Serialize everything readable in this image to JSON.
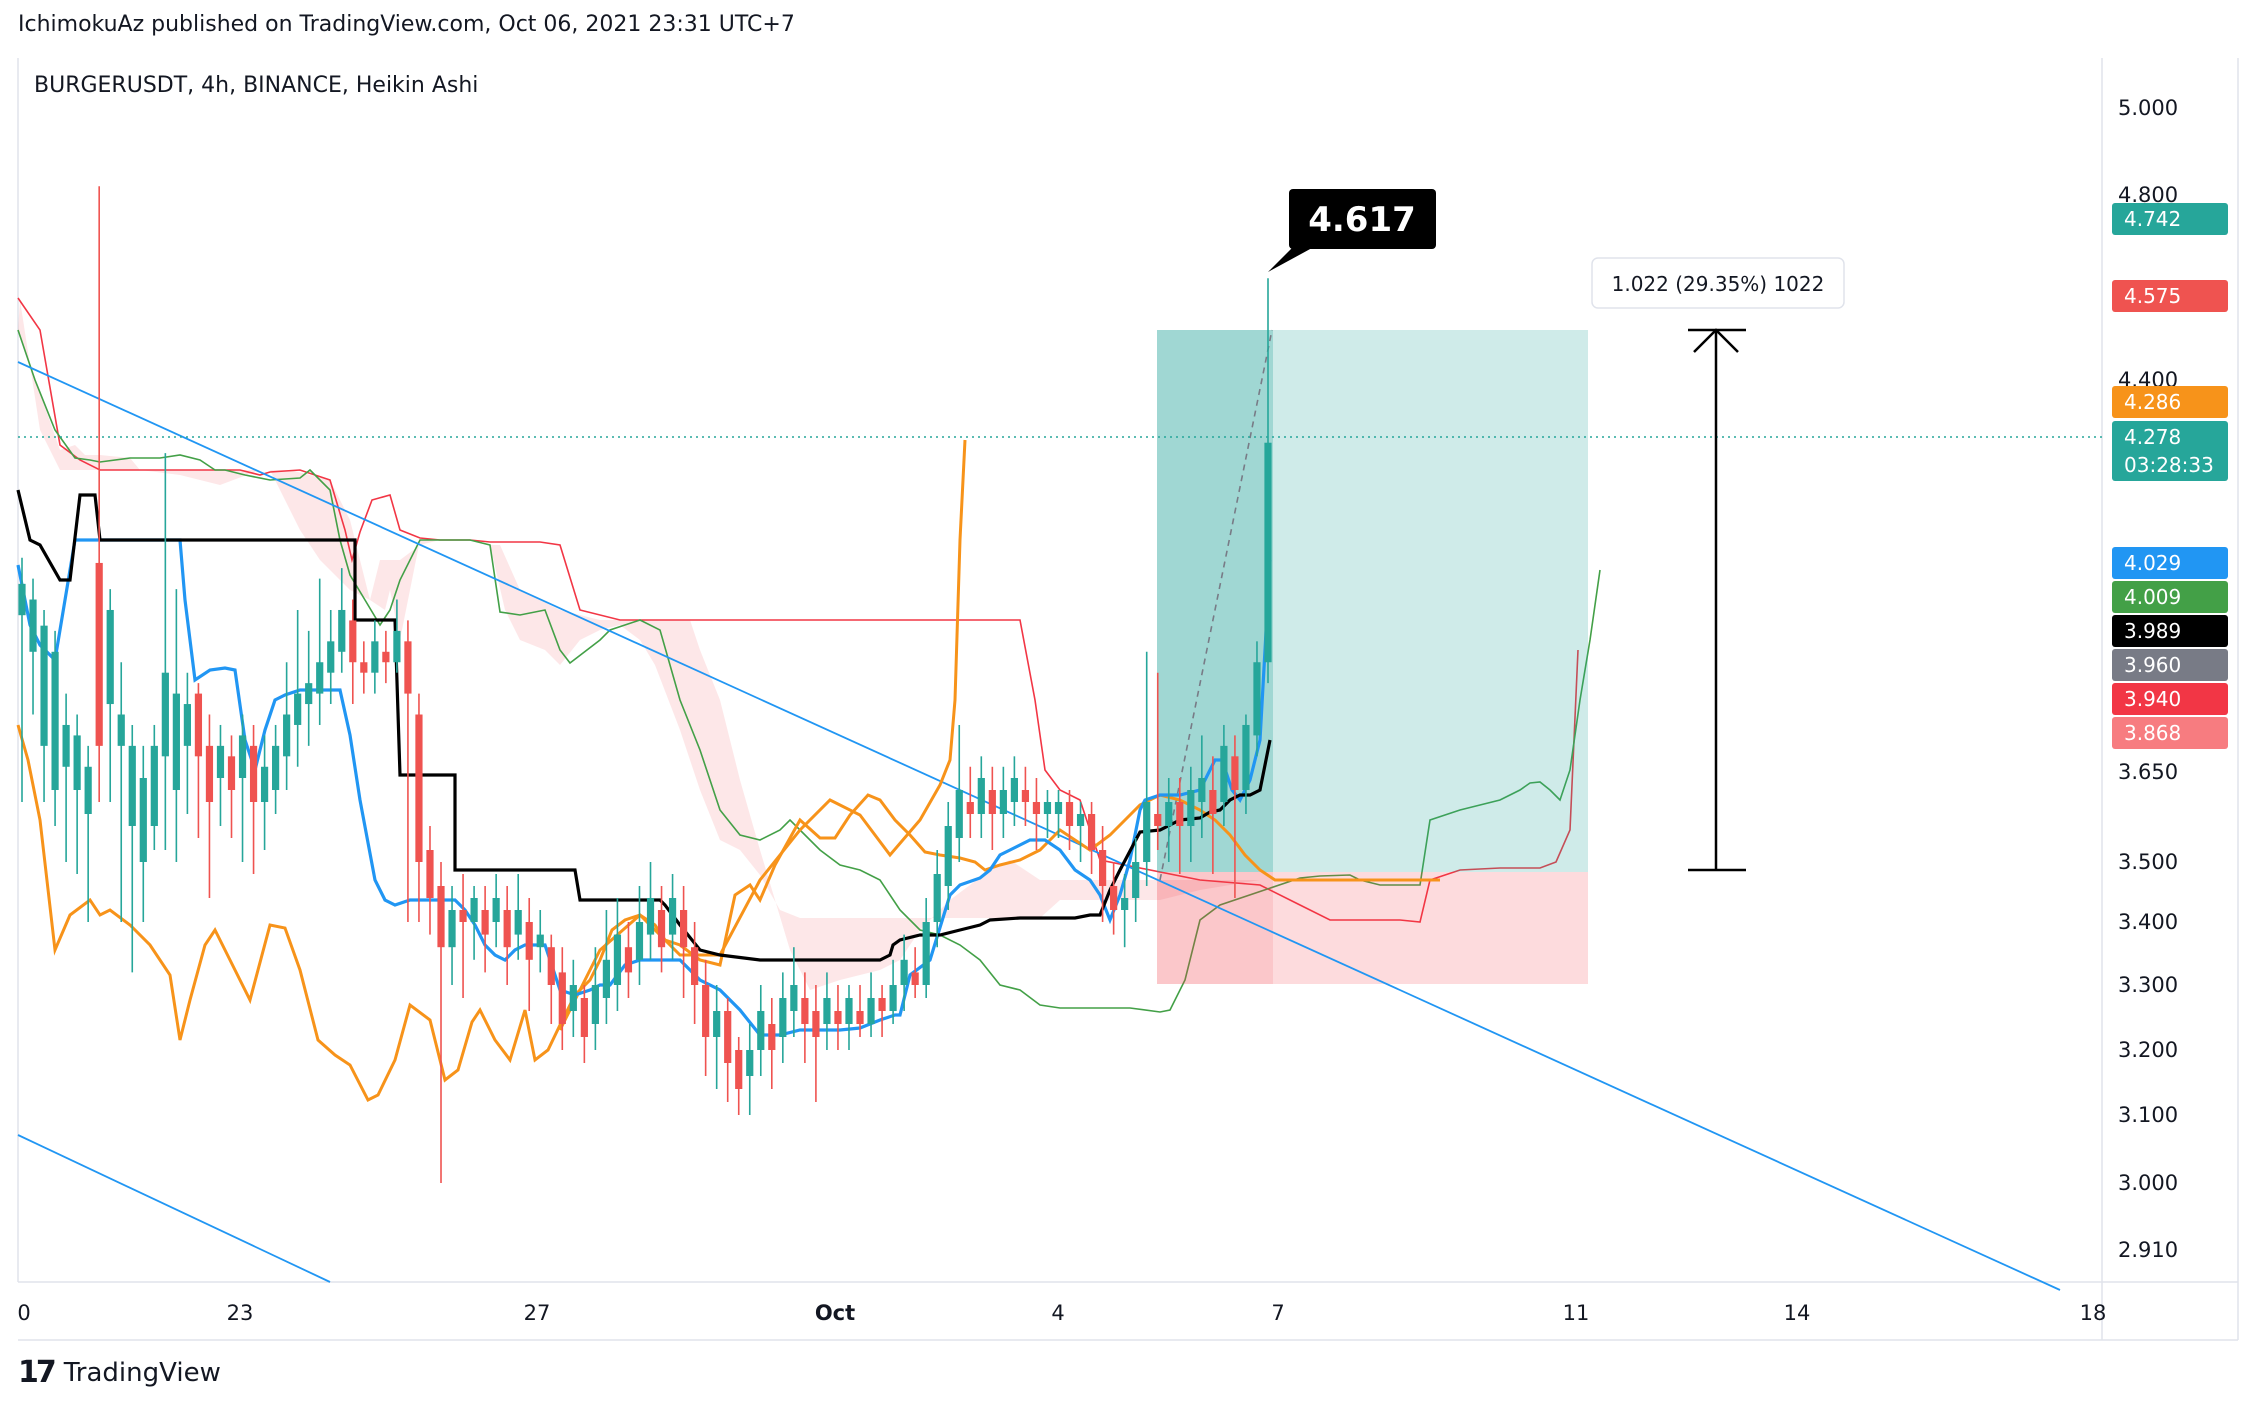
{
  "header": {
    "published": "IchimokuAz published on TradingView.com, Oct 06, 2021 23:31 UTC+7"
  },
  "footer": {
    "logo": "17",
    "brand": "TradingView"
  },
  "chart_data": {
    "type": "candlestick",
    "title": "BURGERUSDT, 4h, BINANCE, Heikin Ashi",
    "ylim": [
      2.87,
      5.09
    ],
    "y_ticks": [
      "5.000",
      "4.800",
      "4.400",
      "3.650",
      "3.500",
      "3.400",
      "3.300",
      "3.200",
      "3.100",
      "3.000",
      "2.910"
    ],
    "x_ticks": [
      "0",
      "23",
      "27",
      "Oct",
      "4",
      "7",
      "11",
      "14",
      "18"
    ],
    "grid": false,
    "price_tags": [
      {
        "text": "4.742",
        "color": "#26a69a"
      },
      {
        "text": "4.575",
        "color": "#ef5350"
      },
      {
        "text": "4.286",
        "color": "#f7931a"
      },
      {
        "text": "4.278",
        "sub": "03:28:33",
        "color": "#26a69a"
      },
      {
        "text": "4.029",
        "color": "#2196f3"
      },
      {
        "text": "4.009",
        "color": "#43a047"
      },
      {
        "text": "3.989",
        "color": "#000000"
      },
      {
        "text": "3.960",
        "color": "#787b86"
      },
      {
        "text": "3.940",
        "color": "#f23645"
      },
      {
        "text": "3.868",
        "color": "#f77c80"
      }
    ],
    "annotations": {
      "peak_label": "4.617",
      "measure_label": "1.022 (29.35%) 1022"
    },
    "long_position": {
      "entry": 3.48,
      "target": 4.5,
      "stop": 3.3
    },
    "candles": [
      [
        3.95,
        4.01,
        4.06,
        3.6
      ],
      [
        3.88,
        3.98,
        4.02,
        3.76
      ],
      [
        3.7,
        3.93,
        3.96,
        3.6
      ],
      [
        3.62,
        3.88,
        3.92,
        3.56
      ],
      [
        3.66,
        3.74,
        3.8,
        3.5
      ],
      [
        3.62,
        3.72,
        3.76,
        3.48
      ],
      [
        3.58,
        3.66,
        3.7,
        3.4
      ],
      [
        4.05,
        3.7,
        4.82,
        3.6
      ],
      [
        3.78,
        3.96,
        4.0,
        3.6
      ],
      [
        3.7,
        3.76,
        3.86,
        3.4
      ],
      [
        3.56,
        3.7,
        3.74,
        3.32
      ],
      [
        3.5,
        3.64,
        3.7,
        3.4
      ],
      [
        3.56,
        3.7,
        3.74,
        3.52
      ],
      [
        3.68,
        3.84,
        4.26,
        3.52
      ],
      [
        3.62,
        3.8,
        4.0,
        3.5
      ],
      [
        3.7,
        3.78,
        3.84,
        3.58
      ],
      [
        3.8,
        3.68,
        3.82,
        3.54
      ],
      [
        3.7,
        3.6,
        3.76,
        3.44
      ],
      [
        3.64,
        3.7,
        3.74,
        3.56
      ],
      [
        3.68,
        3.62,
        3.72,
        3.54
      ],
      [
        3.64,
        3.72,
        3.76,
        3.5
      ],
      [
        3.7,
        3.6,
        3.74,
        3.48
      ],
      [
        3.6,
        3.66,
        3.72,
        3.52
      ],
      [
        3.62,
        3.7,
        3.74,
        3.58
      ],
      [
        3.68,
        3.76,
        3.86,
        3.62
      ],
      [
        3.74,
        3.8,
        3.96,
        3.66
      ],
      [
        3.78,
        3.82,
        3.92,
        3.7
      ],
      [
        3.8,
        3.86,
        4.02,
        3.74
      ],
      [
        3.84,
        3.9,
        3.96,
        3.78
      ],
      [
        3.88,
        3.96,
        4.04,
        3.84
      ],
      [
        3.94,
        3.86,
        3.98,
        3.78
      ],
      [
        3.86,
        3.84,
        3.9,
        3.8
      ],
      [
        3.84,
        3.9,
        3.94,
        3.8
      ],
      [
        3.88,
        3.86,
        3.92,
        3.82
      ],
      [
        3.86,
        3.92,
        3.98,
        3.84
      ],
      [
        3.9,
        3.8,
        3.94,
        3.4
      ],
      [
        3.76,
        3.5,
        3.8,
        3.4
      ],
      [
        3.52,
        3.44,
        3.56,
        3.38
      ],
      [
        3.46,
        3.36,
        3.5,
        3.0
      ],
      [
        3.36,
        3.42,
        3.46,
        3.3
      ],
      [
        3.42,
        3.4,
        3.48,
        3.28
      ],
      [
        3.4,
        3.44,
        3.46,
        3.34
      ],
      [
        3.42,
        3.38,
        3.46,
        3.32
      ],
      [
        3.4,
        3.44,
        3.48,
        3.36
      ],
      [
        3.42,
        3.36,
        3.46,
        3.3
      ],
      [
        3.38,
        3.42,
        3.48,
        3.34
      ],
      [
        3.4,
        3.34,
        3.44,
        3.26
      ],
      [
        3.36,
        3.38,
        3.42,
        3.32
      ],
      [
        3.36,
        3.3,
        3.38,
        3.24
      ],
      [
        3.32,
        3.24,
        3.36,
        3.2
      ],
      [
        3.26,
        3.3,
        3.34,
        3.22
      ],
      [
        3.28,
        3.22,
        3.3,
        3.18
      ],
      [
        3.24,
        3.3,
        3.36,
        3.2
      ],
      [
        3.28,
        3.34,
        3.42,
        3.24
      ],
      [
        3.3,
        3.38,
        3.44,
        3.26
      ],
      [
        3.36,
        3.32,
        3.4,
        3.28
      ],
      [
        3.34,
        3.4,
        3.46,
        3.3
      ],
      [
        3.38,
        3.44,
        3.5,
        3.34
      ],
      [
        3.42,
        3.36,
        3.46,
        3.32
      ],
      [
        3.38,
        3.44,
        3.48,
        3.34
      ],
      [
        3.42,
        3.36,
        3.46,
        3.28
      ],
      [
        3.36,
        3.3,
        3.4,
        3.24
      ],
      [
        3.3,
        3.22,
        3.34,
        3.16
      ],
      [
        3.22,
        3.26,
        3.3,
        3.14
      ],
      [
        3.26,
        3.18,
        3.28,
        3.12
      ],
      [
        3.2,
        3.14,
        3.22,
        3.1
      ],
      [
        3.16,
        3.2,
        3.24,
        3.1
      ],
      [
        3.2,
        3.26,
        3.3,
        3.16
      ],
      [
        3.24,
        3.2,
        3.28,
        3.14
      ],
      [
        3.22,
        3.28,
        3.32,
        3.18
      ],
      [
        3.26,
        3.3,
        3.36,
        3.22
      ],
      [
        3.28,
        3.24,
        3.32,
        3.18
      ],
      [
        3.26,
        3.22,
        3.3,
        3.12
      ],
      [
        3.24,
        3.28,
        3.32,
        3.2
      ],
      [
        3.26,
        3.24,
        3.3,
        3.2
      ],
      [
        3.24,
        3.28,
        3.3,
        3.2
      ],
      [
        3.26,
        3.24,
        3.3,
        3.22
      ],
      [
        3.24,
        3.28,
        3.32,
        3.22
      ],
      [
        3.28,
        3.26,
        3.3,
        3.22
      ],
      [
        3.26,
        3.3,
        3.34,
        3.24
      ],
      [
        3.3,
        3.34,
        3.38,
        3.26
      ],
      [
        3.32,
        3.3,
        3.36,
        3.28
      ],
      [
        3.3,
        3.4,
        3.44,
        3.28
      ],
      [
        3.4,
        3.48,
        3.52,
        3.36
      ],
      [
        3.46,
        3.56,
        3.6,
        3.42
      ],
      [
        3.54,
        3.62,
        3.74,
        3.5
      ],
      [
        3.6,
        3.58,
        3.66,
        3.54
      ],
      [
        3.58,
        3.64,
        3.68,
        3.54
      ],
      [
        3.62,
        3.58,
        3.66,
        3.52
      ],
      [
        3.58,
        3.62,
        3.66,
        3.54
      ],
      [
        3.6,
        3.64,
        3.68,
        3.56
      ],
      [
        3.62,
        3.6,
        3.66,
        3.56
      ],
      [
        3.6,
        3.58,
        3.64,
        3.52
      ],
      [
        3.58,
        3.6,
        3.62,
        3.54
      ],
      [
        3.58,
        3.6,
        3.62,
        3.54
      ],
      [
        3.6,
        3.56,
        3.62,
        3.52
      ],
      [
        3.56,
        3.58,
        3.6,
        3.5
      ],
      [
        3.58,
        3.52,
        3.6,
        3.48
      ],
      [
        3.52,
        3.46,
        3.56,
        3.4
      ],
      [
        3.46,
        3.42,
        3.5,
        3.38
      ],
      [
        3.42,
        3.44,
        3.48,
        3.36
      ],
      [
        3.44,
        3.5,
        3.54,
        3.4
      ],
      [
        3.5,
        3.6,
        3.88,
        3.46
      ],
      [
        3.58,
        3.56,
        3.84,
        3.52
      ],
      [
        3.56,
        3.6,
        3.64,
        3.5
      ],
      [
        3.6,
        3.56,
        3.64,
        3.48
      ],
      [
        3.56,
        3.62,
        3.66,
        3.5
      ],
      [
        3.6,
        3.64,
        3.72,
        3.54
      ],
      [
        3.62,
        3.58,
        3.68,
        3.48
      ],
      [
        3.6,
        3.7,
        3.74,
        3.56
      ],
      [
        3.68,
        3.62,
        3.72,
        3.44
      ],
      [
        3.62,
        3.74,
        3.76,
        3.58
      ],
      [
        3.72,
        3.86,
        3.9,
        3.68
      ],
      [
        3.86,
        4.28,
        4.62,
        3.82
      ]
    ]
  }
}
